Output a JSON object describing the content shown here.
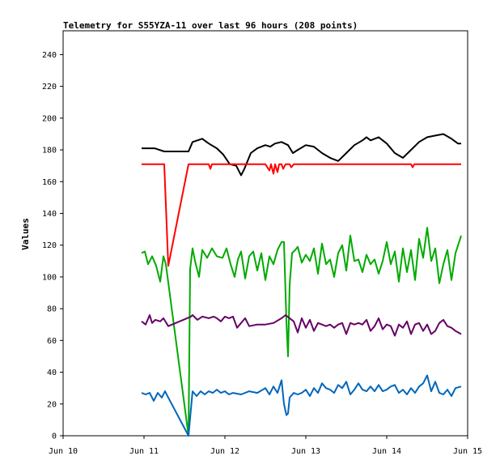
{
  "chart_data": {
    "type": "line",
    "title": "Telemetry for S55YZA-11 over last 96 hours (208 points)",
    "ylabel": "Values",
    "xlabel": "",
    "ylim": [
      0,
      255
    ],
    "yticks": [
      0,
      20,
      40,
      60,
      80,
      100,
      120,
      140,
      160,
      180,
      200,
      220,
      240
    ],
    "xlim": [
      10,
      15
    ],
    "xticks": [
      {
        "value": 10,
        "label": "Jun 10"
      },
      {
        "value": 11,
        "label": "Jun 11"
      },
      {
        "value": 12,
        "label": "Jun 12"
      },
      {
        "value": 13,
        "label": "Jun 13"
      },
      {
        "value": 14,
        "label": "Jun 14"
      },
      {
        "value": 15,
        "label": "Jun 15"
      }
    ],
    "grid": false,
    "legend": "none",
    "series": [
      {
        "color": "#000000",
        "x": [
          10.97,
          11.13,
          11.25,
          11.4,
          11.55,
          11.6,
          11.72,
          11.8,
          11.9,
          11.98,
          12.06,
          12.14,
          12.2,
          12.24,
          12.32,
          12.4,
          12.5,
          12.56,
          12.62,
          12.7,
          12.78,
          12.84,
          12.9,
          13.0,
          13.1,
          13.2,
          13.3,
          13.4,
          13.5,
          13.6,
          13.7,
          13.75,
          13.8,
          13.9,
          14.0,
          14.1,
          14.2,
          14.3,
          14.4,
          14.5,
          14.6,
          14.7,
          14.8,
          14.88,
          14.92
        ],
        "y": [
          181,
          181,
          179,
          179,
          179,
          185,
          187,
          184,
          181,
          177,
          171,
          170,
          164,
          168,
          178,
          181,
          183,
          182,
          184,
          185,
          183,
          178,
          180,
          183,
          182,
          178,
          175,
          173,
          178,
          183,
          186,
          188,
          186,
          188,
          184,
          178,
          175,
          180,
          185,
          188,
          189,
          190,
          187,
          184,
          184
        ]
      },
      {
        "color": "#ff0000",
        "x": [
          10.97,
          11.1,
          11.22,
          11.25,
          11.3,
          11.55,
          11.8,
          11.82,
          11.84,
          11.9,
          12.0,
          12.2,
          12.5,
          12.55,
          12.57,
          12.6,
          12.62,
          12.65,
          12.67,
          12.7,
          12.72,
          12.75,
          12.8,
          12.82,
          12.85,
          12.9,
          13.0,
          13.5,
          14.0,
          14.3,
          14.32,
          14.34,
          14.4,
          14.5,
          14.92
        ],
        "y": [
          171,
          171,
          171,
          171,
          107,
          171,
          171,
          168,
          171,
          171,
          171,
          171,
          171,
          167,
          171,
          165,
          171,
          166,
          171,
          171,
          168,
          171,
          171,
          169,
          171,
          171,
          171,
          171,
          171,
          171,
          169,
          171,
          171,
          171,
          171
        ]
      },
      {
        "color": "#00aa00",
        "x": [
          10.97,
          11.01,
          11.05,
          11.1,
          11.15,
          11.2,
          11.24,
          11.27,
          11.55,
          11.57,
          11.6,
          11.63,
          11.68,
          11.72,
          11.78,
          11.84,
          11.9,
          11.97,
          12.02,
          12.07,
          12.12,
          12.16,
          12.2,
          12.25,
          12.3,
          12.35,
          12.4,
          12.45,
          12.5,
          12.55,
          12.6,
          12.65,
          12.7,
          12.73,
          12.76,
          12.78,
          12.8,
          12.83,
          12.87,
          12.9,
          12.95,
          13.0,
          13.05,
          13.1,
          13.15,
          13.2,
          13.25,
          13.3,
          13.35,
          13.4,
          13.45,
          13.5,
          13.55,
          13.6,
          13.65,
          13.7,
          13.75,
          13.8,
          13.85,
          13.9,
          13.95,
          14.0,
          14.05,
          14.1,
          14.15,
          14.2,
          14.25,
          14.3,
          14.35,
          14.4,
          14.45,
          14.5,
          14.55,
          14.6,
          14.65,
          14.7,
          14.75,
          14.8,
          14.85,
          14.92
        ],
        "y": [
          115,
          116,
          108,
          113,
          107,
          97,
          113,
          108,
          0,
          105,
          118,
          110,
          100,
          117,
          112,
          118,
          113,
          112,
          118,
          108,
          100,
          111,
          116,
          99,
          113,
          116,
          104,
          115,
          98,
          113,
          108,
          117,
          122,
          122,
          72,
          50,
          95,
          115,
          117,
          119,
          109,
          114,
          110,
          118,
          102,
          121,
          108,
          111,
          100,
          115,
          120,
          104,
          126,
          110,
          111,
          103,
          114,
          108,
          111,
          102,
          110,
          122,
          108,
          116,
          97,
          118,
          103,
          117,
          98,
          124,
          112,
          131,
          110,
          118,
          96,
          108,
          117,
          98,
          115,
          126
        ]
      },
      {
        "color": "#660066",
        "x": [
          10.97,
          11.02,
          11.07,
          11.1,
          11.14,
          11.2,
          11.24,
          11.3,
          11.58,
          11.6,
          11.66,
          11.72,
          11.8,
          11.86,
          11.9,
          11.95,
          12.0,
          12.05,
          12.1,
          12.15,
          12.2,
          12.25,
          12.3,
          12.4,
          12.5,
          12.6,
          12.7,
          12.75,
          12.8,
          12.85,
          12.9,
          12.95,
          13.0,
          13.05,
          13.1,
          13.15,
          13.2,
          13.25,
          13.3,
          13.35,
          13.4,
          13.45,
          13.5,
          13.55,
          13.6,
          13.65,
          13.7,
          13.75,
          13.8,
          13.85,
          13.9,
          13.95,
          14.0,
          14.05,
          14.1,
          14.15,
          14.2,
          14.25,
          14.3,
          14.35,
          14.4,
          14.45,
          14.5,
          14.55,
          14.6,
          14.65,
          14.7,
          14.75,
          14.8,
          14.85,
          14.92
        ],
        "y": [
          72,
          70,
          76,
          71,
          73,
          72,
          74,
          69,
          75,
          76,
          73,
          75,
          74,
          75,
          74,
          72,
          75,
          74,
          75,
          68,
          71,
          74,
          69,
          70,
          70,
          71,
          74,
          76,
          74,
          72,
          65,
          74,
          68,
          73,
          66,
          71,
          70,
          69,
          70,
          68,
          70,
          71,
          64,
          71,
          70,
          71,
          70,
          73,
          66,
          69,
          74,
          67,
          70,
          69,
          63,
          70,
          68,
          72,
          64,
          70,
          71,
          66,
          70,
          64,
          66,
          71,
          73,
          69,
          68,
          66,
          64
        ]
      },
      {
        "color": "#0066bb",
        "x": [
          10.97,
          11.02,
          11.07,
          11.12,
          11.17,
          11.22,
          11.26,
          11.3,
          11.55,
          11.6,
          11.65,
          11.7,
          11.75,
          11.8,
          11.85,
          11.9,
          11.95,
          12.0,
          12.05,
          12.1,
          12.2,
          12.3,
          12.4,
          12.5,
          12.55,
          12.6,
          12.65,
          12.7,
          12.73,
          12.76,
          12.78,
          12.8,
          12.85,
          12.9,
          12.95,
          13.0,
          13.05,
          13.1,
          13.15,
          13.2,
          13.25,
          13.3,
          13.35,
          13.4,
          13.45,
          13.5,
          13.55,
          13.6,
          13.65,
          13.7,
          13.75,
          13.8,
          13.85,
          13.9,
          13.95,
          14.0,
          14.05,
          14.1,
          14.15,
          14.2,
          14.25,
          14.3,
          14.35,
          14.4,
          14.45,
          14.5,
          14.55,
          14.6,
          14.65,
          14.7,
          14.75,
          14.8,
          14.85,
          14.92
        ],
        "y": [
          27,
          26,
          27,
          22,
          27,
          24,
          28,
          24,
          0,
          28,
          25,
          28,
          26,
          28,
          27,
          29,
          27,
          28,
          26,
          27,
          26,
          28,
          27,
          30,
          26,
          31,
          27,
          35,
          20,
          13,
          14,
          24,
          27,
          26,
          27,
          29,
          25,
          30,
          27,
          33,
          30,
          29,
          27,
          32,
          30,
          34,
          26,
          29,
          33,
          29,
          28,
          31,
          28,
          32,
          28,
          29,
          31,
          32,
          27,
          29,
          26,
          30,
          27,
          31,
          33,
          38,
          28,
          34,
          27,
          26,
          29,
          25,
          30,
          31
        ]
      }
    ]
  }
}
